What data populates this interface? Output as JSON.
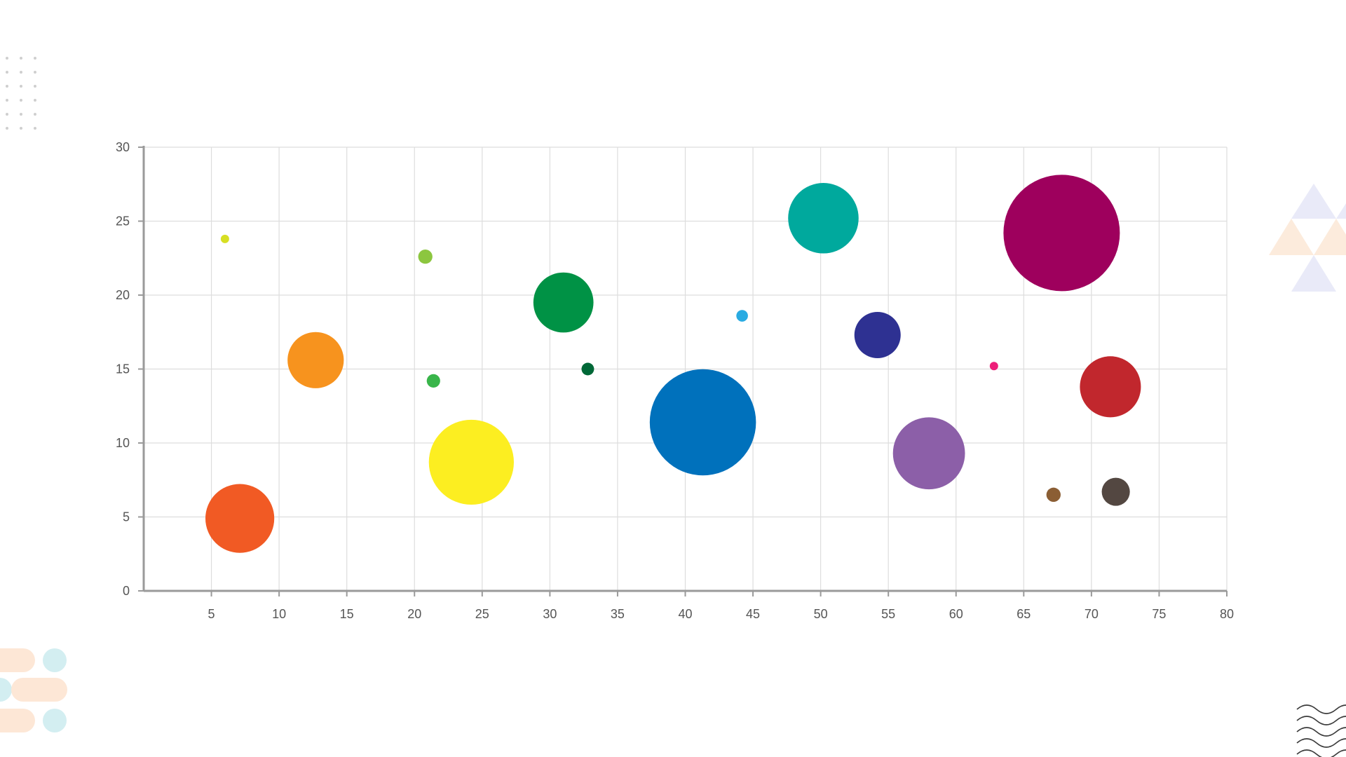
{
  "chart_data": {
    "type": "scatter",
    "variant": "bubble",
    "title": "",
    "xlabel": "",
    "ylabel": "",
    "xlim": [
      0,
      80
    ],
    "ylim": [
      0,
      30
    ],
    "x_ticks": [
      5,
      10,
      15,
      20,
      25,
      30,
      35,
      40,
      45,
      50,
      55,
      60,
      65,
      70,
      75,
      80
    ],
    "y_ticks": [
      0,
      5,
      10,
      15,
      20,
      25,
      30
    ],
    "grid": true,
    "legend": "none",
    "points": [
      {
        "x": 6.0,
        "y": 23.8,
        "size": 0.6,
        "color": "#d7df23"
      },
      {
        "x": 7.1,
        "y": 4.9,
        "size": 42.0,
        "color": "#f15a24"
      },
      {
        "x": 12.7,
        "y": 15.6,
        "size": 28.0,
        "color": "#f7931e"
      },
      {
        "x": 20.8,
        "y": 22.6,
        "size": 1.8,
        "color": "#8cc63f"
      },
      {
        "x": 21.4,
        "y": 14.2,
        "size": 1.6,
        "color": "#39b54a"
      },
      {
        "x": 24.2,
        "y": 8.7,
        "size": 64.0,
        "color": "#fcee21"
      },
      {
        "x": 31.0,
        "y": 19.5,
        "size": 32.0,
        "color": "#009245"
      },
      {
        "x": 32.8,
        "y": 15.0,
        "size": 1.4,
        "color": "#006837"
      },
      {
        "x": 41.3,
        "y": 11.4,
        "size": 100.0,
        "color": "#0071bc"
      },
      {
        "x": 44.2,
        "y": 18.6,
        "size": 1.2,
        "color": "#29abe2"
      },
      {
        "x": 50.2,
        "y": 25.2,
        "size": 44.0,
        "color": "#00a99d"
      },
      {
        "x": 54.2,
        "y": 17.3,
        "size": 19.0,
        "color": "#2e3192"
      },
      {
        "x": 58.0,
        "y": 9.3,
        "size": 46.0,
        "color": "#8c5fa8"
      },
      {
        "x": 62.8,
        "y": 15.2,
        "size": 0.5,
        "color": "#ed1e79"
      },
      {
        "x": 67.2,
        "y": 6.5,
        "size": 1.8,
        "color": "#8b5e34"
      },
      {
        "x": 67.8,
        "y": 24.2,
        "size": 120.0,
        "color": "#9e005d"
      },
      {
        "x": 71.4,
        "y": 13.8,
        "size": 33.0,
        "color": "#c1272d"
      },
      {
        "x": 71.8,
        "y": 6.7,
        "size": 7.0,
        "color": "#534741"
      }
    ]
  },
  "colors": {
    "background": "#ffffff",
    "grid": "#dddddd",
    "axis": "#9a9a9a",
    "tick_text": "#555555"
  }
}
